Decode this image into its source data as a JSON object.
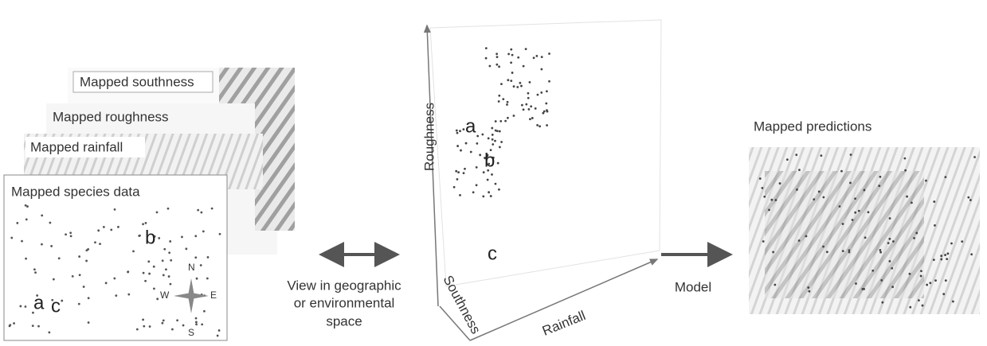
{
  "left_panel": {
    "layers": [
      "Mapped southness",
      "Mapped roughness",
      "Mapped rainfall",
      "Mapped species data"
    ],
    "site_labels": [
      "a",
      "b",
      "c"
    ],
    "compass": [
      "N",
      "W",
      "E",
      "S"
    ]
  },
  "connector": {
    "label": [
      "View in geographic",
      "or environmental",
      "space"
    ]
  },
  "center_panel": {
    "axes": [
      "Roughness",
      "Southness",
      "Rainfall"
    ],
    "cluster_labels": [
      "a",
      "b",
      "c"
    ]
  },
  "model": {
    "label": "Model"
  },
  "right_panel": {
    "title": "Mapped predictions"
  }
}
